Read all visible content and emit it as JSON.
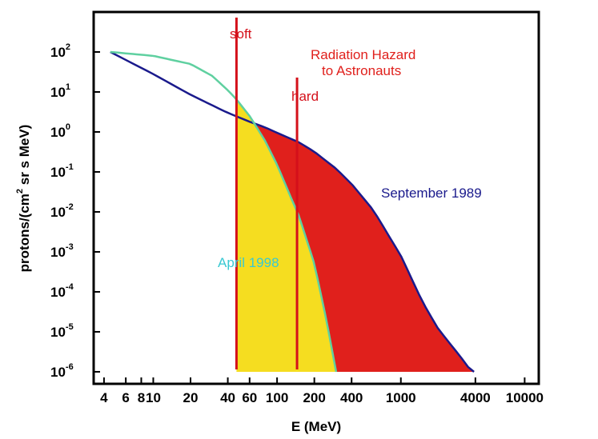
{
  "chart_data": {
    "type": "line",
    "title": "",
    "xlabel": "E (MeV)",
    "ylabel_base": "protons/(cm",
    "ylabel_exp": "2",
    "ylabel_rest": " sr s MeV)",
    "x_scale": "log",
    "y_scale": "log",
    "xlim": [
      3.3,
      13000
    ],
    "ylim": [
      5e-07,
      1000
    ],
    "x_ticks": [
      {
        "v": 4,
        "label": "4"
      },
      {
        "v": 6,
        "label": "6"
      },
      {
        "v": 8,
        "label": "8"
      },
      {
        "v": 10,
        "label": "10"
      },
      {
        "v": 20,
        "label": "20"
      },
      {
        "v": 40,
        "label": "40"
      },
      {
        "v": 60,
        "label": "60"
      },
      {
        "v": 100,
        "label": "100"
      },
      {
        "v": 200,
        "label": "200"
      },
      {
        "v": 400,
        "label": "400"
      },
      {
        "v": 1000,
        "label": "1000"
      },
      {
        "v": 4000,
        "label": "4000"
      },
      {
        "v": 10000,
        "label": "10000"
      }
    ],
    "y_ticks": [
      {
        "v": 100,
        "base": "10",
        "exp": "2"
      },
      {
        "v": 10,
        "base": "10",
        "exp": "1"
      },
      {
        "v": 1,
        "base": "10",
        "exp": "0"
      },
      {
        "v": 0.1,
        "base": "10",
        "exp": "-1"
      },
      {
        "v": 0.01,
        "base": "10",
        "exp": "-2"
      },
      {
        "v": 0.001,
        "base": "10",
        "exp": "-3"
      },
      {
        "v": 0.0001,
        "base": "10",
        "exp": "-4"
      },
      {
        "v": 1e-05,
        "base": "10",
        "exp": "-5"
      },
      {
        "v": 1e-06,
        "base": "10",
        "exp": "-6"
      }
    ],
    "grid": false,
    "series": [
      {
        "name": "September 1989",
        "color": "#1a1a8c",
        "x": [
          4.5,
          10,
          20,
          40,
          60,
          80,
          100,
          150,
          200,
          300,
          400,
          600,
          1000,
          1500,
          2000,
          2500,
          3000,
          3500,
          3900
        ],
        "y": [
          100,
          28,
          8.5,
          3,
          1.8,
          1.3,
          0.95,
          0.55,
          0.32,
          0.12,
          0.05,
          0.011,
          0.0008,
          5.5e-05,
          1.2e-05,
          5e-06,
          2.5e-06,
          1.3e-06,
          1e-06
        ]
      },
      {
        "name": "April 1998",
        "color": "#5fd0a0",
        "x": [
          4.5,
          10,
          20,
          30,
          40,
          47,
          60,
          80,
          100,
          130,
          150,
          200,
          250,
          300
        ],
        "y": [
          100,
          80,
          50,
          25,
          11,
          6.5,
          2.5,
          0.6,
          0.15,
          0.022,
          0.008,
          0.0005,
          2e-05,
          1e-06
        ]
      }
    ],
    "shaded_regions": [
      {
        "label": "soft",
        "color": "#f5dd20",
        "from_x": 47,
        "to_x": 300,
        "under_series": "April 1998"
      },
      {
        "label": "hard",
        "color": "#e0201c",
        "from_x": 60,
        "to_x": 3900,
        "between": [
          "April 1998",
          "September 1989"
        ]
      }
    ],
    "threshold_lines": [
      {
        "label": "soft",
        "x": 47,
        "color": "#d4101a"
      },
      {
        "label": "hard",
        "x": 145,
        "color": "#d4101a"
      }
    ],
    "annotations": {
      "hazard_line1": "Radiation Hazard",
      "hazard_line2": "to Astronauts",
      "september_label": "September 1989",
      "april_label": "April 1998",
      "soft_label": "soft",
      "hard_label": "hard"
    }
  }
}
